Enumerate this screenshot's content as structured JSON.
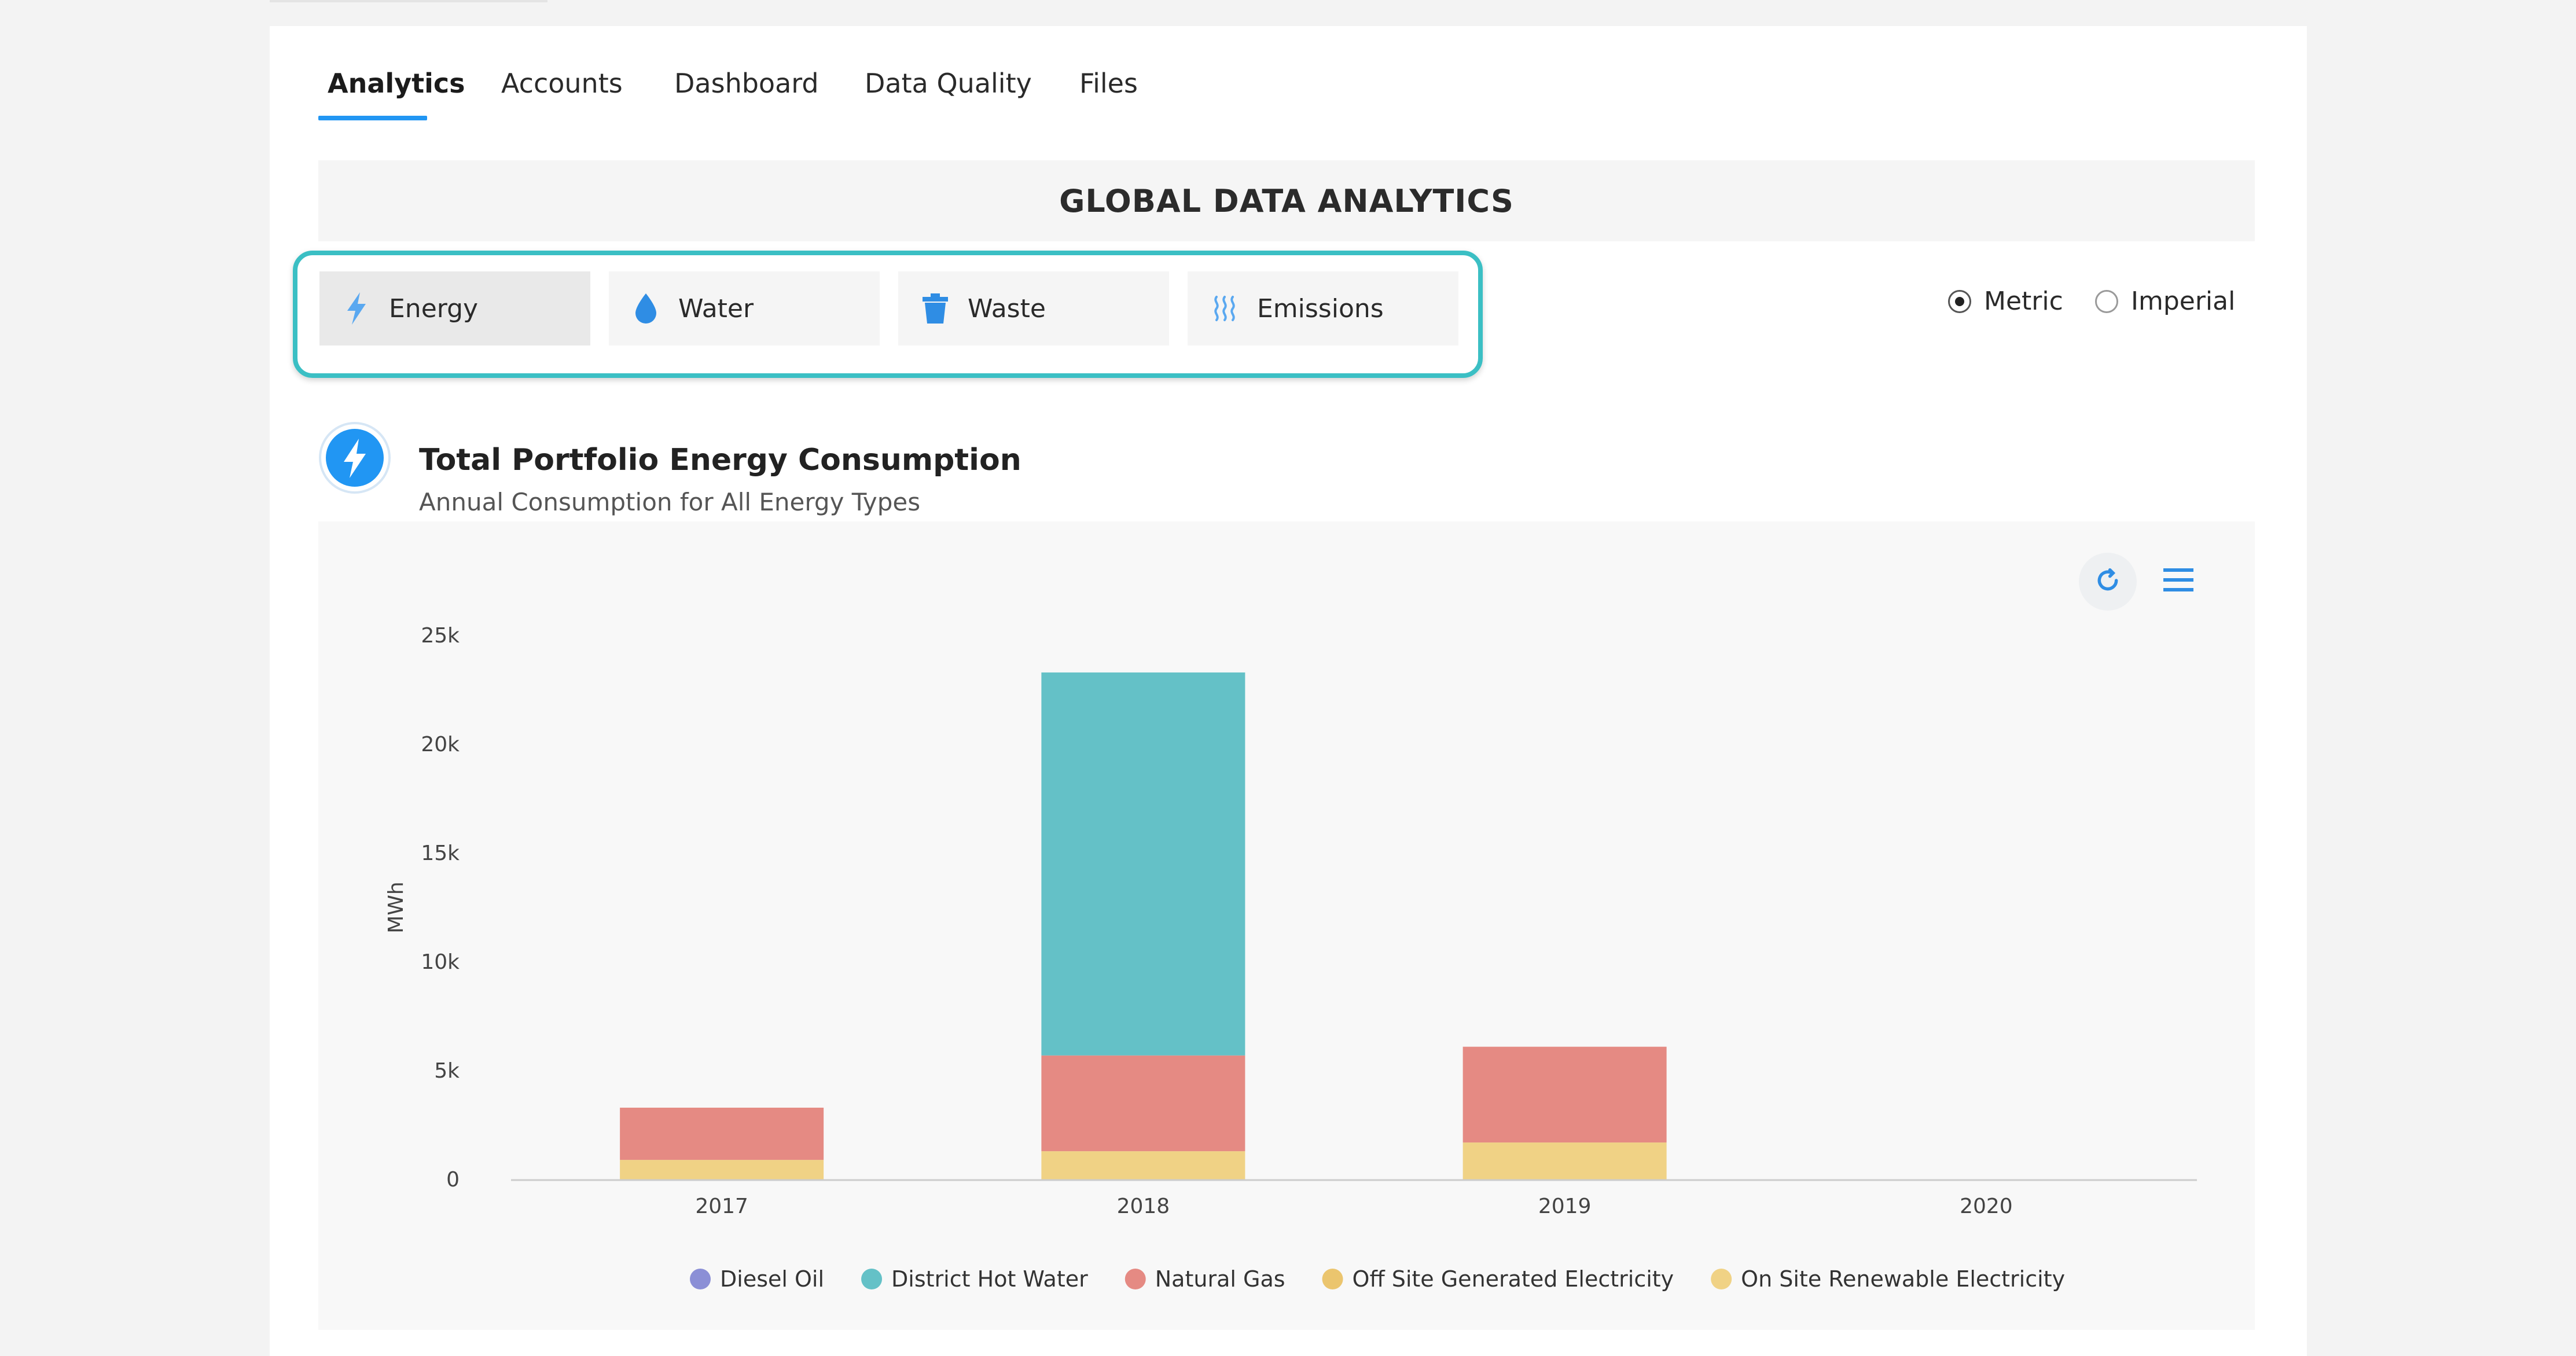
{
  "tabs": [
    {
      "label": "Analytics",
      "active": true
    },
    {
      "label": "Accounts"
    },
    {
      "label": "Dashboard"
    },
    {
      "label": "Data Quality"
    },
    {
      "label": "Files"
    }
  ],
  "header": {
    "title": "GLOBAL DATA ANALYTICS"
  },
  "categories": [
    {
      "label": "Energy",
      "icon": "lightning-icon",
      "active": true
    },
    {
      "label": "Water",
      "icon": "water-drop-icon"
    },
    {
      "label": "Waste",
      "icon": "trash-icon"
    },
    {
      "label": "Emissions",
      "icon": "emissions-icon"
    }
  ],
  "units": {
    "metric_label": "Metric",
    "imperial_label": "Imperial",
    "selected": "Metric"
  },
  "section": {
    "title": "Total Portfolio Energy Consumption",
    "subtitle": "Annual Consumption for All Energy Types",
    "icon": "lightning-icon"
  },
  "colors": {
    "accent": "#2196f3",
    "highlight": "#3bbfc4",
    "Diesel Oil": "#8b8fd6",
    "District Hot Water": "#64c1c7",
    "Natural Gas": "#e58a83",
    "Off Site Generated Electricity": "#ebc56e",
    "On Site Renewable Electricity": "#f0d285"
  },
  "chart_data": {
    "type": "bar",
    "stacked": true,
    "title": "",
    "xlabel": "",
    "ylabel": "MWh",
    "categories": [
      "2017",
      "2018",
      "2019",
      "2020"
    ],
    "ylim": [
      0,
      25000
    ],
    "yticks": [
      0,
      5000,
      10000,
      15000,
      20000,
      25000
    ],
    "ytick_labels": [
      "0",
      "5k",
      "10k",
      "15k",
      "20k",
      "25k"
    ],
    "grid": false,
    "legend_position": "bottom",
    "series": [
      {
        "name": "Diesel Oil",
        "values": [
          0,
          0,
          0,
          0
        ]
      },
      {
        "name": "District Hot Water",
        "values": [
          0,
          17600,
          0,
          0
        ]
      },
      {
        "name": "Natural Gas",
        "values": [
          2400,
          4400,
          4400,
          0
        ]
      },
      {
        "name": "Off Site Generated Electricity",
        "values": [
          0,
          0,
          0,
          0
        ]
      },
      {
        "name": "On Site Renewable Electricity",
        "values": [
          900,
          1300,
          1700,
          0
        ]
      }
    ]
  }
}
